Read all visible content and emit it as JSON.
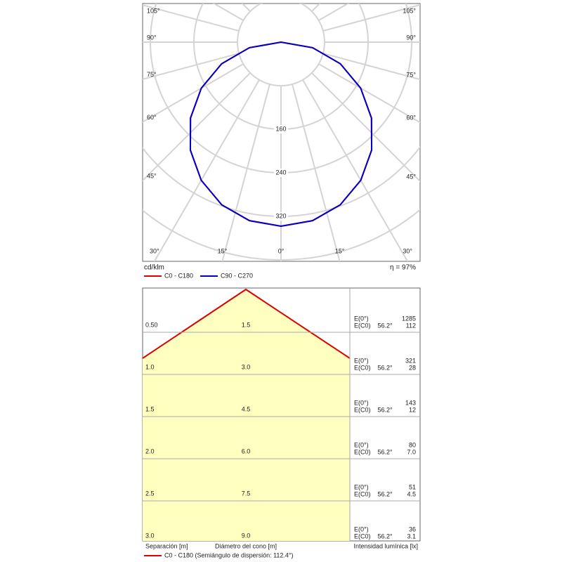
{
  "chart_data": {
    "type": "polar",
    "unit": "cd/klm",
    "efficiency": "η = 97%",
    "x": [
      -90,
      -80,
      -70,
      -60,
      -50,
      -40,
      -30,
      -20,
      -10,
      0,
      10,
      20,
      30,
      40,
      50,
      60,
      70,
      80,
      90
    ],
    "series": [
      {
        "name": "C0 - C180",
        "color": "#e00000",
        "values": [
          0,
          59,
          116,
          169,
          217,
          259,
          293,
          318,
          333,
          338,
          333,
          318,
          293,
          259,
          217,
          169,
          116,
          59,
          0
        ]
      },
      {
        "name": "C90 - C270",
        "color": "#0000cc",
        "values": [
          0,
          59,
          116,
          169,
          217,
          259,
          293,
          318,
          333,
          338,
          333,
          318,
          293,
          259,
          217,
          169,
          116,
          59,
          0
        ]
      }
    ],
    "rlim": [
      0,
      480
    ],
    "rticks": [
      160,
      240,
      320
    ],
    "angle_ticks": [
      {
        "value": 0,
        "label": "0°"
      },
      {
        "value": 15,
        "label": "15°"
      },
      {
        "value": 30,
        "label": "30°"
      },
      {
        "value": 45,
        "label": "45°"
      },
      {
        "value": 60,
        "label": "60°"
      },
      {
        "value": 75,
        "label": "75°"
      },
      {
        "value": 90,
        "label": "90°"
      },
      {
        "value": 105,
        "label": "105°"
      }
    ],
    "grid": true
  },
  "cone": {
    "rows": [
      {
        "distance": "0.50",
        "diameter": "1.5",
        "e0_label": "E(0°)",
        "e0": "1285",
        "ec0_label": "E(C0)",
        "angle": "56.2°",
        "ec0": "112"
      },
      {
        "distance": "1.0",
        "diameter": "3.0",
        "e0_label": "E(0°)",
        "e0": "321",
        "ec0_label": "E(C0)",
        "angle": "56.2°",
        "ec0": "28"
      },
      {
        "distance": "1.5",
        "diameter": "4.5",
        "e0_label": "E(0°)",
        "e0": "143",
        "ec0_label": "E(C0)",
        "angle": "56.2°",
        "ec0": "12"
      },
      {
        "distance": "2.0",
        "diameter": "6.0",
        "e0_label": "E(0°)",
        "e0": "80",
        "ec0_label": "E(C0)",
        "angle": "56.2°",
        "ec0": "7.0"
      },
      {
        "distance": "2.5",
        "diameter": "7.5",
        "e0_label": "E(0°)",
        "e0": "51",
        "ec0_label": "E(C0)",
        "angle": "56.2°",
        "ec0": "4.5"
      },
      {
        "distance": "3.0",
        "diameter": "9.0",
        "e0_label": "E(0°)",
        "e0": "36",
        "ec0_label": "E(C0)",
        "angle": "56.2°",
        "ec0": "3.1"
      }
    ],
    "distance_label": "Separación [m]",
    "diameter_label": "Diámetro del cono [m]",
    "intensity_label": "Intensidad lumínica [lx]",
    "legend": "C0 - C180 (Semiángulo de dispersión: 112.4°)"
  }
}
